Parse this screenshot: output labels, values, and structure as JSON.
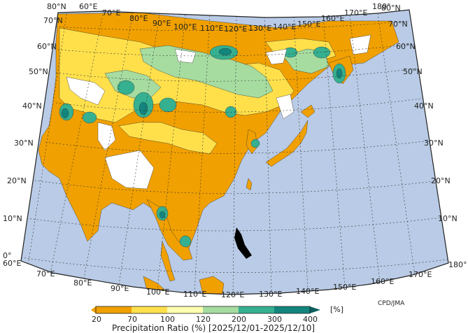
{
  "map": {
    "lat_labels": [
      "80°N",
      "70°N",
      "60°N",
      "50°N",
      "40°N",
      "30°N",
      "20°N",
      "10°N",
      "0°"
    ],
    "lon_labels": [
      "60°E",
      "70°E",
      "80°E",
      "90°E",
      "100°E",
      "110°E",
      "120°E",
      "130°E",
      "140°E",
      "150°E",
      "160°E",
      "170°E",
      "180°"
    ],
    "credit": "CPD/JMA",
    "colors": {
      "ocean": "#b9cbe6",
      "land_gap": "#ffffff",
      "c20_70": "#f0a000",
      "c70_100": "#ffe04b",
      "c100_120": "#ffffb0",
      "c120_200": "#a6dca0",
      "c200_300": "#35b090",
      "c300_400": "#12857d",
      "c400": "#0b5f5f"
    }
  },
  "legend": {
    "ticks": [
      "20",
      "70",
      "100",
      "120",
      "200",
      "300",
      "400"
    ],
    "unit": "[%]",
    "title": "Precipitation Ratio (%) [2025/12/01-2025/12/10]"
  }
}
